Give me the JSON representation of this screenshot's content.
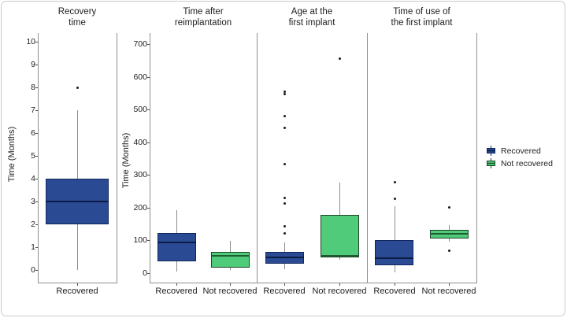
{
  "chart_data": {
    "type": "boxplot",
    "ylabel": "Time (Months)",
    "grid": "off",
    "legend": {
      "position": "right",
      "items": [
        {
          "label": "Recovered",
          "group": "Recovered"
        },
        {
          "label": "Not recovered",
          "group": "Not recovered"
        }
      ]
    },
    "styles": {
      "groups": {
        "Recovered": {
          "fill": "#2b4a94",
          "border": "#10265c",
          "median": "#0a1c44"
        },
        "Not recovered": {
          "fill": "#4fcb7a",
          "border": "#1c4426",
          "median": "#1e5c31"
        }
      },
      "whisker": "#8c8c8c",
      "axis": "#8f8f8f",
      "tick": "#4f4f4f",
      "text": "#212121",
      "outlier": "#1a1a1a"
    },
    "panels": [
      {
        "title": "Recovery\ntime",
        "ylabel": "Time (Months)",
        "ylim": [
          0,
          10
        ],
        "yticks": [
          0,
          1,
          2,
          3,
          4,
          5,
          6,
          7,
          8,
          9,
          10
        ],
        "boxes": [
          {
            "category": "Recovered",
            "group": "Recovered",
            "whislo": 0,
            "q1": 2,
            "med": 3,
            "q3": 4,
            "whishi": 7,
            "outliers": [
              8
            ]
          }
        ]
      },
      {
        "title": "Time after\nreimplantation",
        "ylabel": "Time (Months)",
        "ylim": [
          0,
          700
        ],
        "yticks": [
          0,
          100,
          200,
          300,
          400,
          500,
          600,
          700
        ],
        "boxes": [
          {
            "category": "Recovered",
            "group": "Recovered",
            "whislo": 5,
            "q1": 36,
            "med": 95,
            "q3": 123,
            "whishi": 192,
            "outliers": []
          },
          {
            "category": "Not recovered",
            "group": "Not recovered",
            "whislo": 10,
            "q1": 17,
            "med": 52,
            "q3": 64,
            "whishi": 98,
            "outliers": []
          }
        ]
      },
      {
        "title": "Age at the\nfirst implant",
        "ylabel": null,
        "ylim": [
          0,
          700
        ],
        "yticks": [],
        "boxes": [
          {
            "category": "Recovered",
            "group": "Recovered",
            "whislo": 12,
            "q1": 29,
            "med": 48,
            "q3": 65,
            "whishi": 94,
            "outliers": [
              555,
              548,
              480,
              445,
              334,
              231,
              214,
              144,
              123
            ]
          },
          {
            "category": "Not recovered",
            "group": "Not recovered",
            "whislo": 41,
            "q1": 48,
            "med": 53,
            "q3": 178,
            "whishi": 276,
            "outliers": [
              656
            ]
          }
        ]
      },
      {
        "title": "Time of use of\nthe first implant",
        "ylabel": null,
        "ylim": [
          0,
          700
        ],
        "yticks": [],
        "boxes": [
          {
            "category": "Recovered",
            "group": "Recovered",
            "whislo": 3,
            "q1": 24,
            "med": 46,
            "q3": 101,
            "whishi": 204,
            "outliers": [
              229,
              279
            ]
          },
          {
            "category": "Not recovered",
            "group": "Not recovered",
            "whislo": 96,
            "q1": 106,
            "med": 120,
            "q3": 132,
            "whishi": 147,
            "outliers": [
              70,
              201
            ]
          }
        ]
      }
    ]
  }
}
